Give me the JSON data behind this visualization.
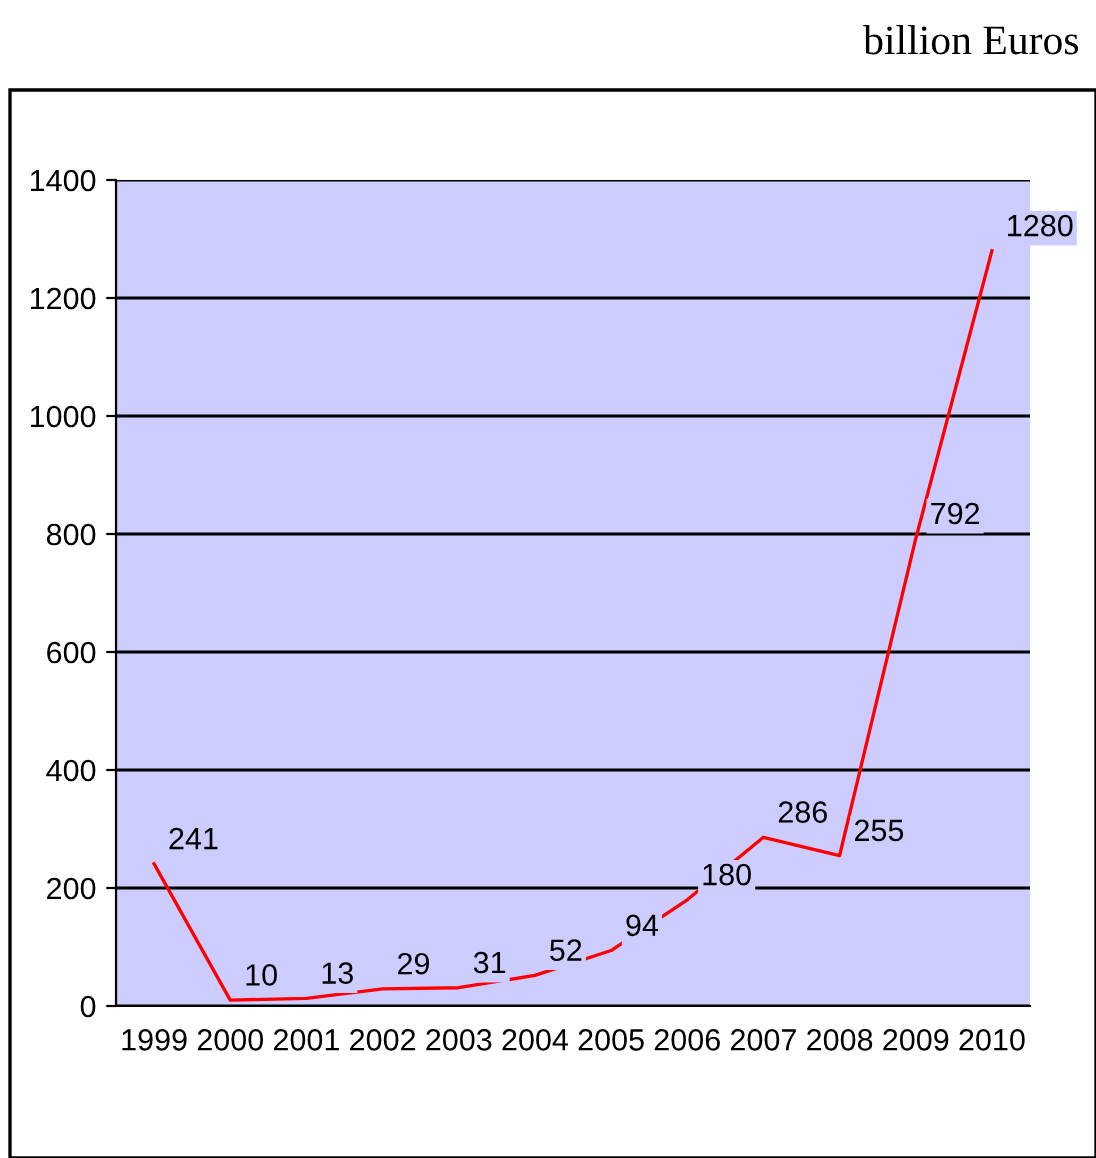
{
  "chart_data": {
    "type": "line",
    "subtitle": "billion Euros",
    "categories": [
      "1999",
      "2000",
      "2001",
      "2002",
      "2003",
      "2004",
      "2005",
      "2006",
      "2007",
      "2008",
      "2009",
      "2010"
    ],
    "series": [
      {
        "color": "#ff0000",
        "values": [
          241,
          10,
          13,
          29,
          31,
          52,
          94,
          180,
          286,
          255,
          792,
          1280
        ]
      }
    ],
    "ylim": [
      0,
      1400
    ],
    "yticks": [
      0,
      200,
      400,
      600,
      800,
      1000,
      1200,
      1400
    ],
    "grid": "y",
    "legend": false,
    "marker": "none",
    "line_style": "solid",
    "data_labels": true
  }
}
